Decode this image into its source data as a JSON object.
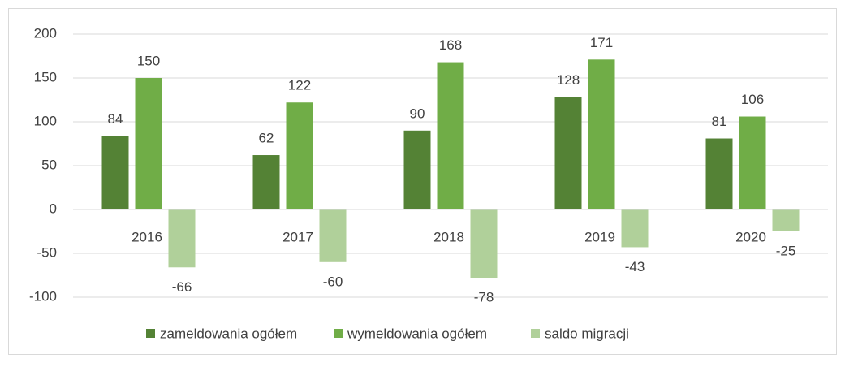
{
  "chart_data": {
    "type": "bar",
    "categories": [
      "2016",
      "2017",
      "2018",
      "2019",
      "2020"
    ],
    "series": [
      {
        "name": "zameldowania ogółem",
        "color": "#548235",
        "values": [
          84,
          62,
          90,
          128,
          81
        ]
      },
      {
        "name": "wymeldowania ogółem",
        "color": "#70ad47",
        "values": [
          150,
          122,
          168,
          171,
          106
        ]
      },
      {
        "name": "saldo migracji",
        "color": "#b0d09a",
        "values": [
          -66,
          -60,
          -78,
          -43,
          -25
        ]
      }
    ],
    "ylim": [
      -100,
      200
    ],
    "yticks": [
      -100,
      -50,
      0,
      50,
      100,
      150,
      200
    ],
    "grid": true,
    "legend": "bottom"
  }
}
